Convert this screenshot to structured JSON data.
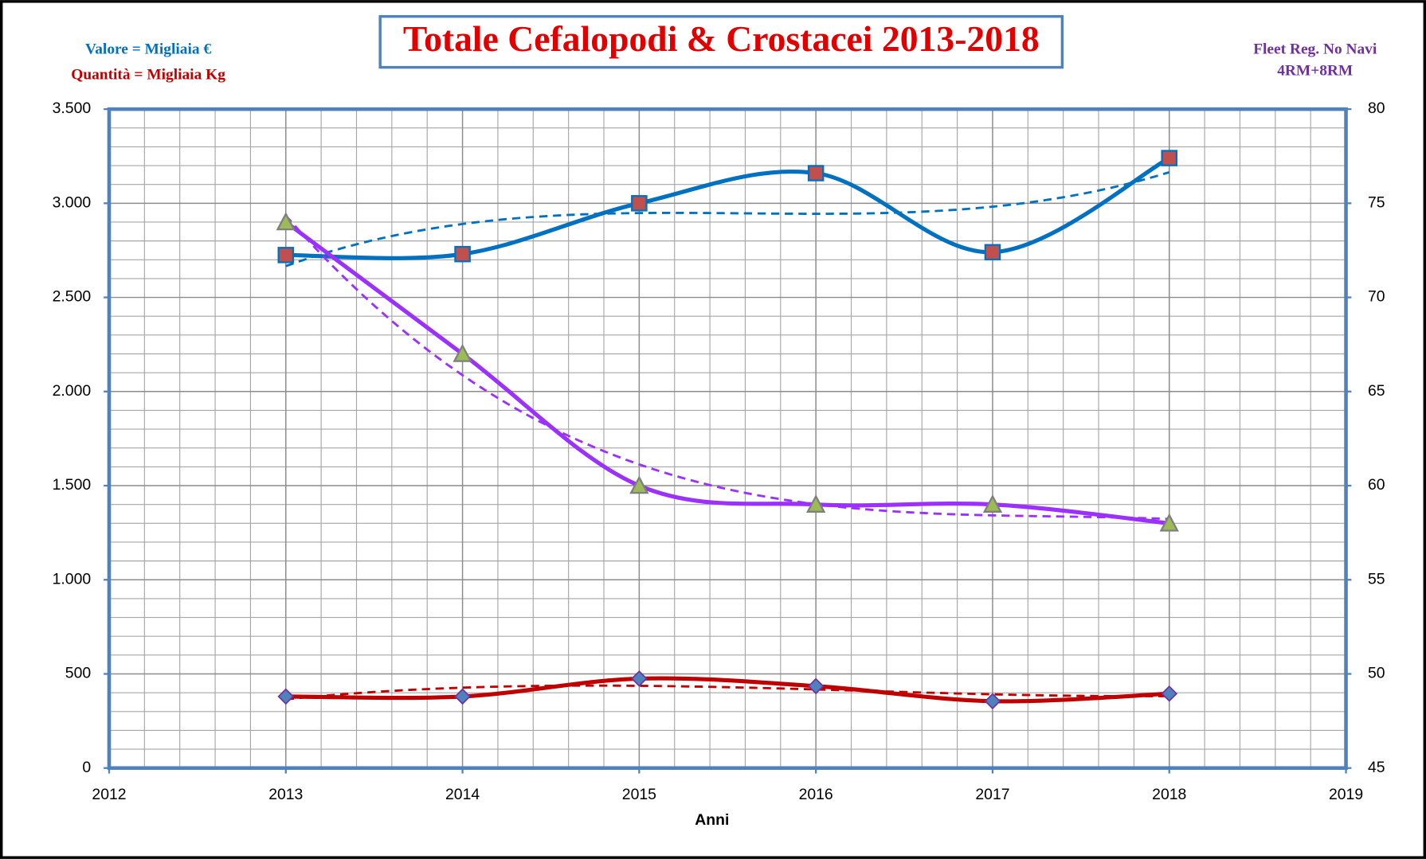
{
  "chart_data": {
    "type": "line",
    "title": "Totale Cefalopodi & Crostacei 2013-2018",
    "annotations": [
      "Valore = Migliaia €",
      "Quantità = Migliaia Kg",
      "Fleet Reg. No Navi",
      "4RM+8RM"
    ],
    "xlabel": "Anni",
    "x": [
      2013,
      2014,
      2015,
      2016,
      2017,
      2018
    ],
    "series": [
      {
        "color": "#0070c0",
        "marker": "square",
        "marker_color": "#c0504d",
        "values": [
          2725,
          2730,
          3000,
          3160,
          2740,
          3240
        ]
      },
      {
        "color": "#c00000",
        "marker": "diamond",
        "marker_color": "#4f81bd",
        "values": [
          380,
          380,
          475,
          435,
          355,
          395
        ]
      },
      {
        "color": "#9b30ff",
        "marker": "triangle",
        "marker_color": "#9bbb59",
        "axis": "y2",
        "values": [
          74,
          67,
          60,
          59,
          59,
          58
        ]
      }
    ],
    "smooth": true,
    "trendline": true,
    "xlim": [
      2012,
      2019
    ],
    "xticks": [
      2012,
      2013,
      2014,
      2015,
      2016,
      2017,
      2018,
      2019
    ],
    "ylim": [
      0,
      3500
    ],
    "yticks": [
      0,
      500,
      {
        "value": 1000,
        "label": "1.000"
      },
      {
        "value": 1500,
        "label": "1.500"
      },
      {
        "value": 2000,
        "label": "2.000"
      },
      {
        "value": 2500,
        "label": "2.500"
      },
      {
        "value": 3000,
        "label": "3.000"
      },
      {
        "value": 3500,
        "label": "3.500"
      }
    ],
    "y2lim": [
      45,
      80
    ],
    "y2ticks": [
      45,
      50,
      55,
      60,
      65,
      70,
      75,
      80
    ],
    "grid": true
  }
}
